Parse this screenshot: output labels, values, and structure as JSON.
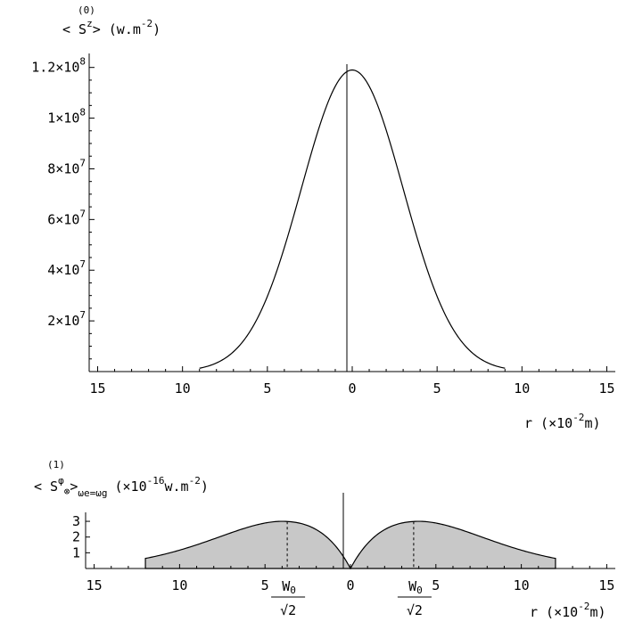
{
  "chart_data": [
    {
      "type": "line",
      "ylabel": {
        "prefix": "< S",
        "superscript_order": "(0)",
        "superscript_component": "z",
        "suffix": "> (w.m",
        "unit_exponent": "-2",
        "close": ")"
      },
      "xlabel": {
        "prefix": "r (×10",
        "exponent": "-2",
        "suffix": "m)"
      },
      "x_tick_labels": [
        "15",
        "10",
        "5",
        "0",
        "5",
        "10",
        "15"
      ],
      "x_tick_values": [
        -15,
        -10,
        -5,
        0,
        5,
        10,
        15
      ],
      "y_tick_labels": [
        {
          "mantissa": "2×10",
          "exp": "7"
        },
        {
          "mantissa": "4×10",
          "exp": "7"
        },
        {
          "mantissa": "6×10",
          "exp": "7"
        },
        {
          "mantissa": "8×10",
          "exp": "7"
        },
        {
          "mantissa": "1×10",
          "exp": "8"
        },
        {
          "mantissa": "1.2×10",
          "exp": "8"
        }
      ],
      "y_tick_values": [
        20000000,
        40000000,
        60000000,
        80000000,
        100000000,
        120000000
      ],
      "xlim": [
        -15.5,
        15.5
      ],
      "ylim": [
        0,
        122000000
      ],
      "x_range_plotted": [
        -9,
        9
      ],
      "series": [
        {
          "x": [
            -9,
            -8,
            -7,
            -6,
            -5,
            -4,
            -3,
            -2,
            -1,
            0,
            1,
            2,
            3,
            4,
            5,
            6,
            7,
            8,
            9
          ],
          "y": [
            100000,
            900000,
            4300000,
            13500000,
            29600000,
            51300000,
            75600000,
            98000000,
            113000000,
            119000000,
            113000000,
            98000000,
            75600000,
            51300000,
            29600000,
            13500000,
            4300000,
            900000,
            100000
          ]
        }
      ],
      "grid": false
    },
    {
      "type": "area",
      "ylabel": {
        "prefix": "< S",
        "superscript_order": "(1)",
        "superscript_component": "φ",
        "sub_component": "⊗",
        "close_bracket": ">",
        "condition": "ωe=ωg",
        "unit_prefix": "(×10",
        "unit_exponent": "-16",
        "unit_mid": "w.m",
        "unit_exponent2": "-2",
        "close": ")"
      },
      "xlabel": {
        "prefix": "r (×10",
        "exponent": "-2",
        "suffix": "m)"
      },
      "x_tick_labels": [
        "15",
        "10",
        "5",
        "0",
        "5",
        "10",
        "15"
      ],
      "x_tick_values": [
        -15,
        -10,
        -5,
        0,
        5,
        10,
        15
      ],
      "y_tick_labels": [
        "1",
        "2",
        "3"
      ],
      "y_tick_values": [
        1,
        2,
        3
      ],
      "xlim": [
        -15.5,
        15.5
      ],
      "ylim": [
        0,
        3.4
      ],
      "x_range_plotted": [
        -12,
        12
      ],
      "series": [
        {
          "x": [
            -12,
            -11,
            -10,
            -9,
            -8,
            -7,
            -6,
            -5,
            -4,
            -3,
            -2,
            -1,
            0,
            1,
            2,
            3,
            4,
            5,
            6,
            7,
            8,
            9,
            10,
            11,
            12
          ],
          "y": [
            0.07,
            0.17,
            0.36,
            0.7,
            1.2,
            1.8,
            2.4,
            2.85,
            3.0,
            2.7,
            1.95,
            0.9,
            0,
            0.9,
            1.95,
            2.7,
            3.0,
            2.85,
            2.4,
            1.8,
            1.2,
            0.7,
            0.36,
            0.17,
            0.07
          ]
        }
      ],
      "markers": [
        {
          "x": -3.7,
          "label_num": "W0",
          "label_den": "√2"
        },
        {
          "x": 3.7,
          "label_num": "W0",
          "label_den": "√2"
        }
      ],
      "grid": false
    }
  ]
}
